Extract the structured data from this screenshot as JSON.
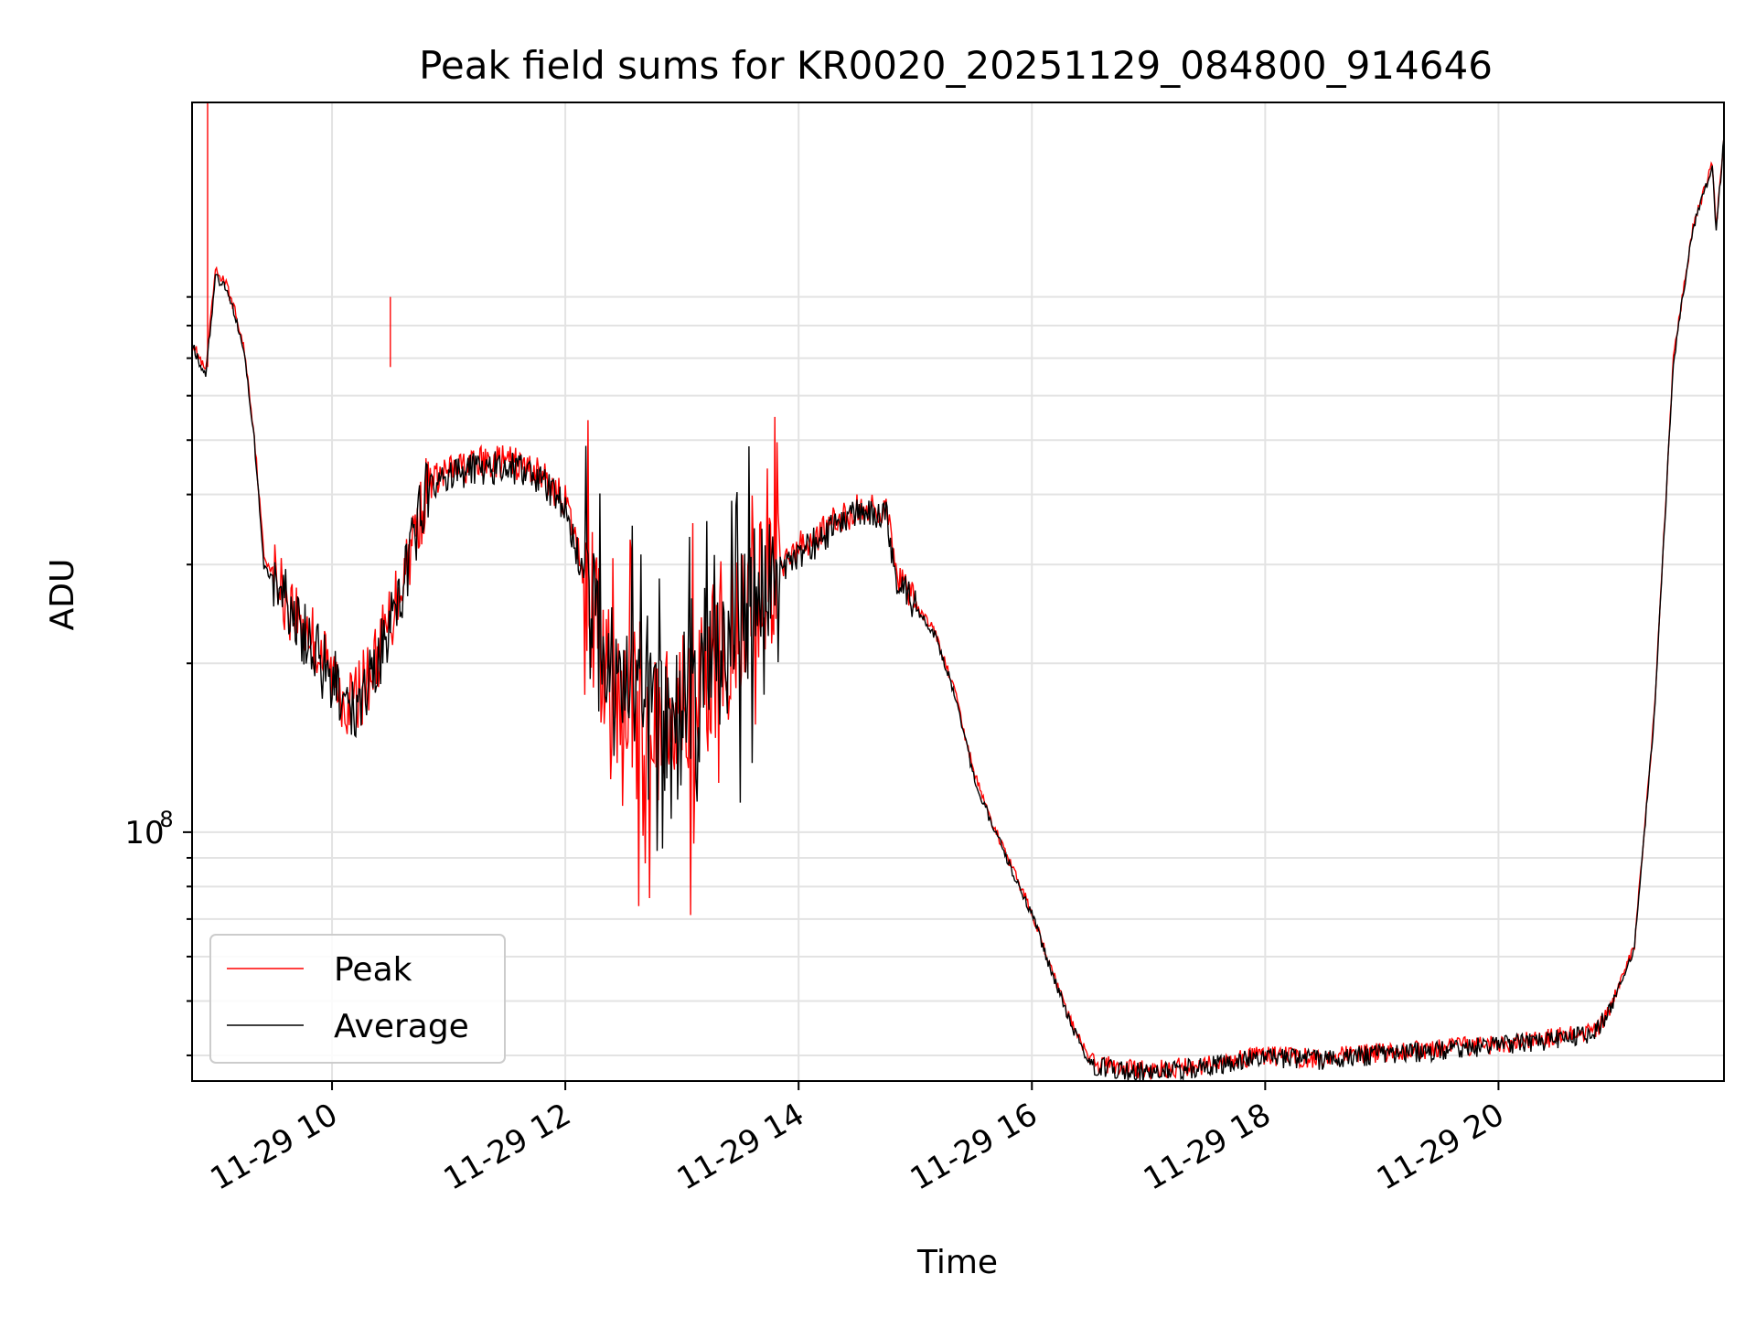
{
  "chart_data": {
    "type": "line",
    "title": "Peak field sums for KR0020_20251129_084800_914646",
    "xlabel": "Time",
    "ylabel": "ADU",
    "yscale": "log",
    "ylim": [
      36000000,
      2000000000
    ],
    "xlim": [
      "11-29 08:48",
      "11-29 21:56"
    ],
    "x_ticks": [
      "11-29 10",
      "11-29 12",
      "11-29 14",
      "11-29 16",
      "11-29 18",
      "11-29 20"
    ],
    "y_tick_labels": [
      {
        "base": "10",
        "exp": "8"
      }
    ],
    "grid": true,
    "legend": "lower-left",
    "colors": {
      "peak": "#ff0000",
      "average": "#000000"
    },
    "x": [
      "11-29 08:48",
      "11-29 08:55",
      "11-29 09:00",
      "11-29 09:05",
      "11-29 09:10",
      "11-29 09:15",
      "11-29 09:20",
      "11-29 09:25",
      "11-29 09:30",
      "11-29 09:35",
      "11-29 09:40",
      "11-29 09:50",
      "11-29 10:00",
      "11-29 10:10",
      "11-29 10:20",
      "11-29 10:30",
      "11-29 10:40",
      "11-29 10:50",
      "11-29 11:00",
      "11-29 11:15",
      "11-29 11:30",
      "11-29 11:45",
      "11-29 12:00",
      "11-29 12:10",
      "11-29 12:20",
      "11-29 12:30",
      "11-29 12:45",
      "11-29 13:00",
      "11-29 13:15",
      "11-29 13:30",
      "11-29 13:45",
      "11-29 14:00",
      "11-29 14:15",
      "11-29 14:30",
      "11-29 14:45",
      "11-29 14:50",
      "11-29 15:00",
      "11-29 15:10",
      "11-29 15:20",
      "11-29 15:30",
      "11-29 15:40",
      "11-29 15:50",
      "11-29 16:00",
      "11-29 16:10",
      "11-29 16:20",
      "11-29 16:30",
      "11-29 16:45",
      "11-29 17:00",
      "11-29 17:30",
      "11-29 18:00",
      "11-29 18:30",
      "11-29 19:00",
      "11-29 19:30",
      "11-29 20:00",
      "11-29 20:30",
      "11-29 20:50",
      "11-29 21:00",
      "11-29 21:10",
      "11-29 21:20",
      "11-29 21:30",
      "11-29 21:40",
      "11-29 21:50",
      "11-29 21:52",
      "11-29 21:56"
    ],
    "series": [
      {
        "name": "Peak",
        "spikes": [
          {
            "x": "11-29 08:56",
            "y": 2000000000
          },
          {
            "x": "11-29 10:30",
            "y": 900000000
          }
        ],
        "values": [
          750000000,
          660000000,
          1000000000,
          960000000,
          850000000,
          720000000,
          510000000,
          310000000,
          290000000,
          265000000,
          250000000,
          222000000,
          190000000,
          168000000,
          192000000,
          240000000,
          320000000,
          420000000,
          440000000,
          455000000,
          458000000,
          442000000,
          390000000,
          285000000,
          205000000,
          170000000,
          162000000,
          165000000,
          185000000,
          240000000,
          290000000,
          320000000,
          350000000,
          375000000,
          380000000,
          290000000,
          255000000,
          228000000,
          180000000,
          128000000,
          103000000,
          86000000,
          72000000,
          57000000,
          46000000,
          39000000,
          38000000,
          37500000,
          38500000,
          40000000,
          39500000,
          40500000,
          41000000,
          42000000,
          43000000,
          44000000,
          51000000,
          63000000,
          160000000,
          700000000,
          1200000000,
          1550000000,
          1200000000,
          1750000000
        ]
      },
      {
        "name": "Average",
        "values": [
          740000000,
          650000000,
          980000000,
          940000000,
          840000000,
          710000000,
          500000000,
          300000000,
          282000000,
          258000000,
          244000000,
          216000000,
          185000000,
          164000000,
          187000000,
          233000000,
          312000000,
          410000000,
          430000000,
          445000000,
          448000000,
          432000000,
          380000000,
          278000000,
          200000000,
          166000000,
          158000000,
          161000000,
          180000000,
          234000000,
          283000000,
          312000000,
          342000000,
          366000000,
          372000000,
          287000000,
          252000000,
          225000000,
          178000000,
          126000000,
          102000000,
          85000000,
          71500000,
          56500000,
          45500000,
          38600000,
          37700000,
          37200000,
          38200000,
          39700000,
          39200000,
          40200000,
          40700000,
          41700000,
          42700000,
          43700000,
          50500000,
          62500000,
          158000000,
          690000000,
          1190000000,
          1530000000,
          1180000000,
          1730000000
        ]
      }
    ]
  }
}
